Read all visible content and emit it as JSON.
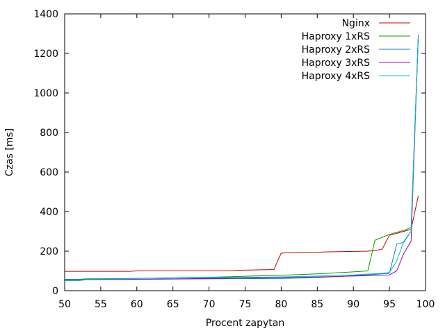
{
  "chart_data": {
    "type": "line",
    "title": "",
    "xlabel": "Procent zapytan",
    "ylabel": "Czas [ms]",
    "xlim": [
      50,
      100
    ],
    "ylim": [
      0,
      1400
    ],
    "xticks": [
      50,
      55,
      60,
      65,
      70,
      75,
      80,
      85,
      90,
      95,
      100
    ],
    "yticks": [
      0,
      200,
      400,
      600,
      800,
      1000,
      1200,
      1400
    ],
    "grid": false,
    "legend_position": "top-right",
    "series": [
      {
        "name": "Nginx",
        "color": "#c00000",
        "x": [
          50,
          59,
          60,
          73,
          74,
          79,
          79.5,
          80,
          81,
          85,
          86,
          92,
          93,
          94,
          95,
          96,
          97,
          98,
          99
        ],
        "y": [
          98,
          98,
          100,
          100,
          103,
          107,
          150,
          190,
          192,
          194,
          196,
          200,
          203,
          210,
          280,
          290,
          300,
          310,
          480
        ]
      },
      {
        "name": "Haproxy 1xRS",
        "color": "#00a000",
        "x": [
          50,
          52,
          53,
          60,
          70,
          80,
          85,
          90,
          92,
          93,
          94,
          95,
          96,
          97,
          98,
          99
        ],
        "y": [
          58,
          58,
          60,
          62,
          68,
          78,
          85,
          95,
          100,
          255,
          270,
          285,
          295,
          305,
          320,
          1295
        ]
      },
      {
        "name": "Haproxy 2xRS",
        "color": "#0080c0",
        "x": [
          50,
          52,
          53,
          60,
          70,
          80,
          85,
          90,
          94,
          95,
          96,
          97,
          98,
          99
        ],
        "y": [
          52,
          52,
          55,
          57,
          60,
          62,
          66,
          76,
          85,
          88,
          235,
          245,
          300,
          1290
        ]
      },
      {
        "name": "Haproxy 3xRS",
        "color": "#a000c0",
        "x": [
          50,
          52,
          53,
          60,
          70,
          80,
          85,
          90,
          94,
          95,
          96,
          97,
          98,
          99
        ],
        "y": [
          54,
          54,
          56,
          58,
          62,
          66,
          70,
          74,
          78,
          80,
          100,
          190,
          250,
          1290
        ]
      },
      {
        "name": "Haproxy 4xRS",
        "color": "#00c0c0",
        "x": [
          50,
          52,
          53,
          60,
          70,
          80,
          85,
          90,
          94,
          95,
          96,
          97,
          98,
          99
        ],
        "y": [
          56,
          56,
          58,
          62,
          66,
          70,
          74,
          80,
          88,
          92,
          150,
          250,
          300,
          1290
        ]
      }
    ]
  }
}
